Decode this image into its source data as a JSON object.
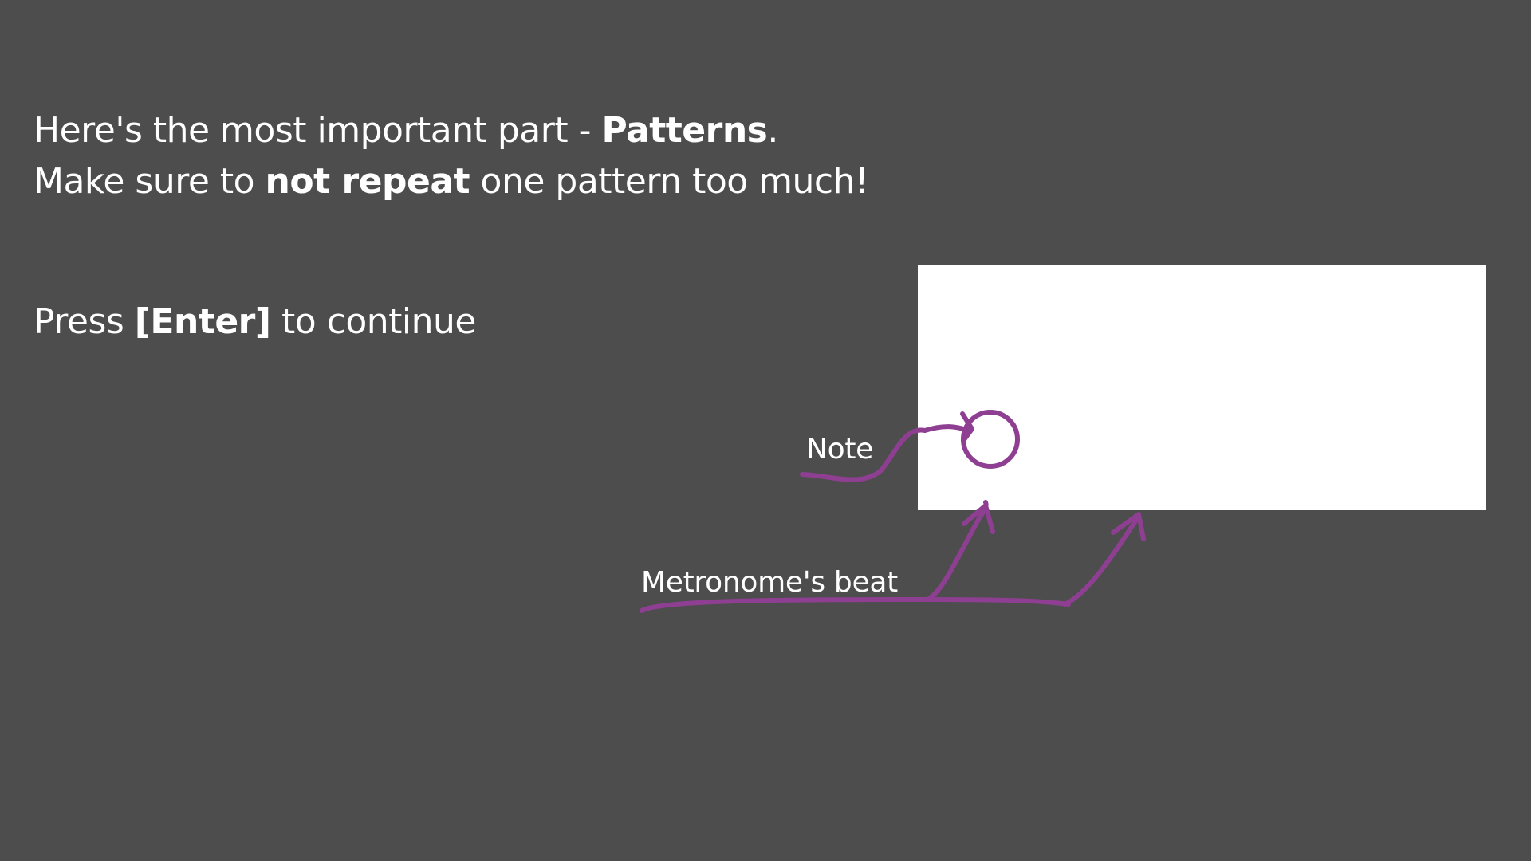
{
  "instructions": {
    "line1_pre": "Here's the most important part - ",
    "line1_bold": "Patterns",
    "line1_post": ".",
    "line2_pre": "Make sure to ",
    "line2_bold": "not repeat",
    "line2_post": " one pattern too much!"
  },
  "prompt": {
    "pre": "Press ",
    "key": "[Enter]",
    "post": " to continue"
  },
  "annotations": {
    "note_label": "Note",
    "beat_label": "Metronome's beat"
  },
  "colors": {
    "background": "#4d4d4d",
    "text": "#ffffff",
    "panel": "#ffffff",
    "annotation_stroke": "#8e3f92"
  }
}
